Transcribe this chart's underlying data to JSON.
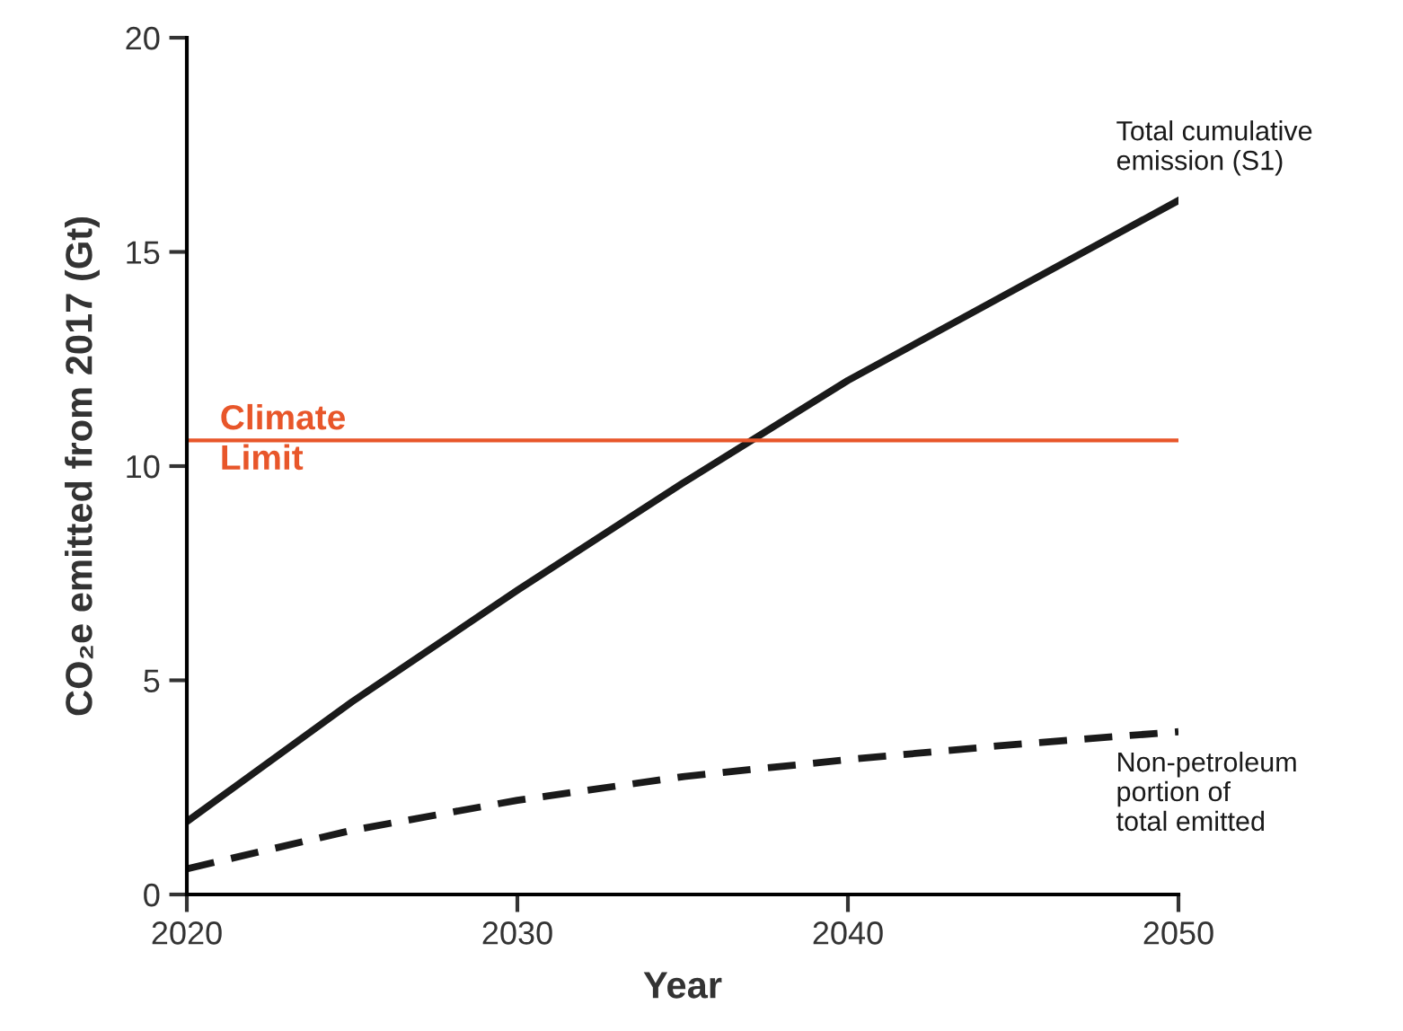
{
  "chart_data": {
    "type": "line",
    "xlabel": "Year",
    "ylabel": "CO₂e emitted from 2017 (Gt)",
    "x": [
      2020,
      2025,
      2030,
      2035,
      2040,
      2045,
      2050
    ],
    "series": [
      {
        "name": "Total cumulative\nemission (S1)",
        "color": "#1a1a1a",
        "line_style": "solid",
        "values": [
          1.7,
          4.5,
          7.1,
          9.6,
          12.0,
          14.1,
          16.2
        ]
      },
      {
        "name": "Non-petroleum\nportion of\ntotal emitted",
        "color": "#1a1a1a",
        "line_style": "dashed",
        "values": [
          0.6,
          1.5,
          2.2,
          2.75,
          3.15,
          3.5,
          3.8
        ]
      }
    ],
    "ref_lines": [
      {
        "axis": "y",
        "value": 10.6,
        "label": "Climate\nLimit",
        "color": "#e8562a"
      }
    ],
    "xlim": [
      2020,
      2050
    ],
    "xticks": [
      2020,
      2030,
      2040,
      2050
    ],
    "ylim": [
      0,
      20
    ],
    "yticks": [
      0,
      5,
      10,
      15,
      20
    ],
    "grid": false,
    "legend": false,
    "marker": "none"
  }
}
